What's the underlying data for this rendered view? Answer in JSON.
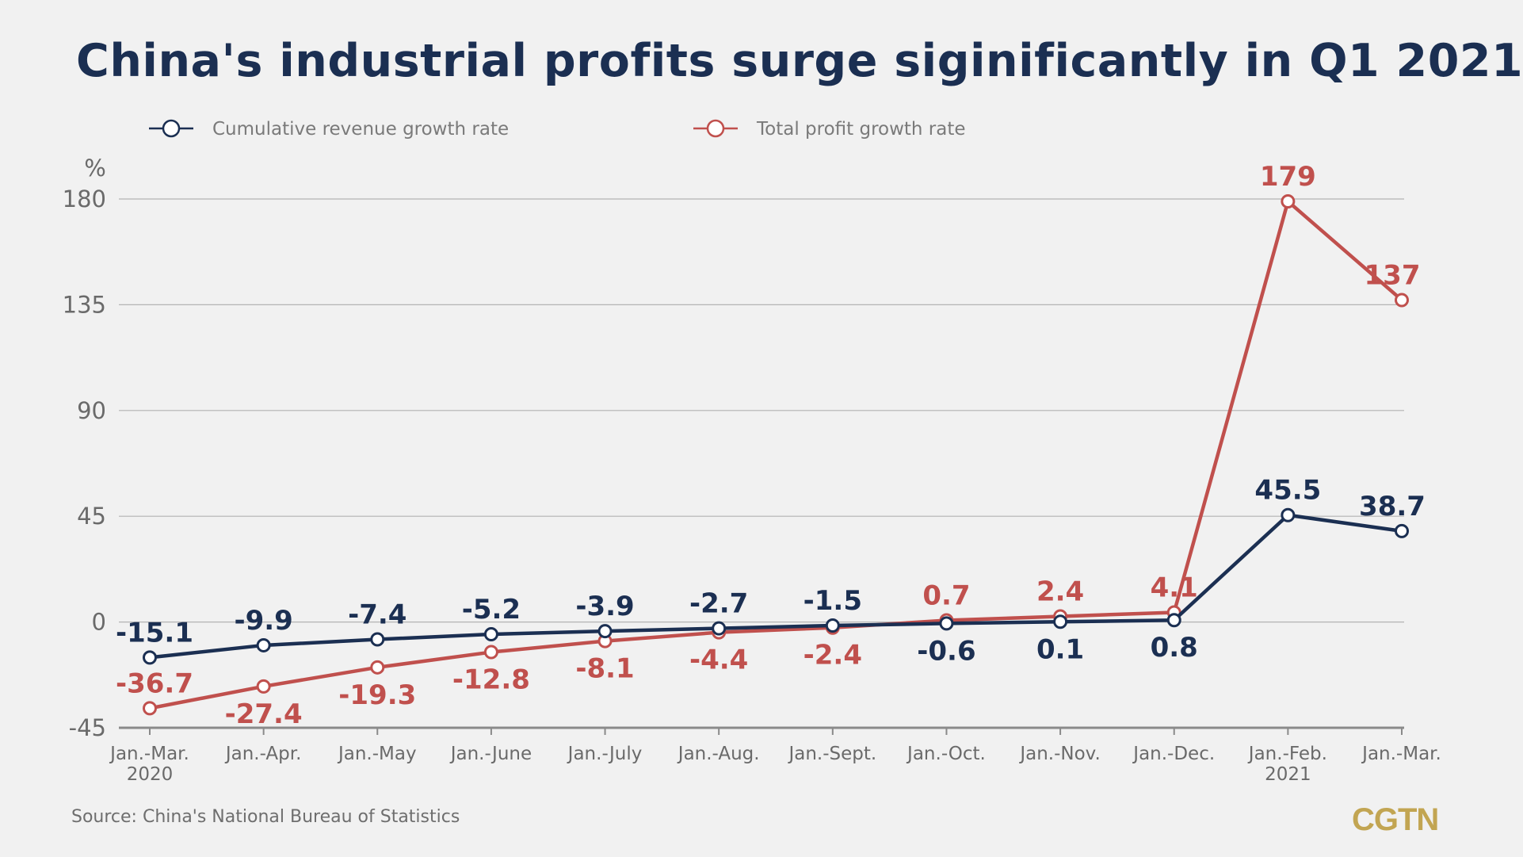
{
  "chart_data": {
    "type": "line",
    "title": "China's industrial profits surge siginificantly in Q1 2021",
    "ylabel": "%",
    "ylim": [
      -45,
      180
    ],
    "yticks": [
      "180",
      "135",
      "90",
      "45",
      "0",
      "-45"
    ],
    "grid": true,
    "legend_placement": "top-left",
    "categories": [
      {
        "label": "Jan.-Mar.",
        "sub": "2020"
      },
      {
        "label": "Jan.-Apr.",
        "sub": ""
      },
      {
        "label": "Jan.-May",
        "sub": ""
      },
      {
        "label": "Jan.-June",
        "sub": ""
      },
      {
        "label": "Jan.-July",
        "sub": ""
      },
      {
        "label": "Jan.-Aug.",
        "sub": ""
      },
      {
        "label": "Jan.-Sept.",
        "sub": ""
      },
      {
        "label": "Jan.-Oct.",
        "sub": ""
      },
      {
        "label": "Jan.-Nov.",
        "sub": ""
      },
      {
        "label": "Jan.-Dec.",
        "sub": ""
      },
      {
        "label": "Jan.-Feb.",
        "sub": "2021"
      },
      {
        "label": "Jan.-Mar.",
        "sub": ""
      }
    ],
    "series": [
      {
        "name": "Cumulative revenue growth rate",
        "color": "#1b2f52",
        "values": [
          -15.1,
          -9.9,
          -7.4,
          -5.2,
          -3.9,
          -2.7,
          -1.5,
          -0.6,
          0.1,
          0.8,
          45.5,
          38.7
        ],
        "labels": [
          "-15.1",
          "-9.9",
          "-7.4",
          "-5.2",
          "-3.9",
          "-2.7",
          "-1.5",
          "-0.6",
          "0.1",
          "0.8",
          "45.5",
          "38.7"
        ],
        "label_pos": [
          "above",
          "above",
          "above",
          "above",
          "above",
          "above",
          "above",
          "below",
          "below",
          "below",
          "above",
          "above"
        ]
      },
      {
        "name": "Total profit growth rate",
        "color": "#c0504d",
        "values": [
          -36.7,
          -27.4,
          -19.3,
          -12.8,
          -8.1,
          -4.4,
          -2.4,
          0.7,
          2.4,
          4.1,
          179,
          137
        ],
        "labels": [
          "-36.7",
          "-27.4",
          "-19.3",
          "-12.8",
          "-8.1",
          "-4.4",
          "-2.4",
          "0.7",
          "2.4",
          "4.1",
          "179",
          "137"
        ],
        "label_pos": [
          "above",
          "below",
          "below",
          "below",
          "below",
          "below",
          "below",
          "above",
          "above",
          "above",
          "above",
          "above"
        ]
      }
    ]
  },
  "footer": {
    "source": "Source: China's National Bureau of Statistics",
    "logo": "CGTN"
  }
}
